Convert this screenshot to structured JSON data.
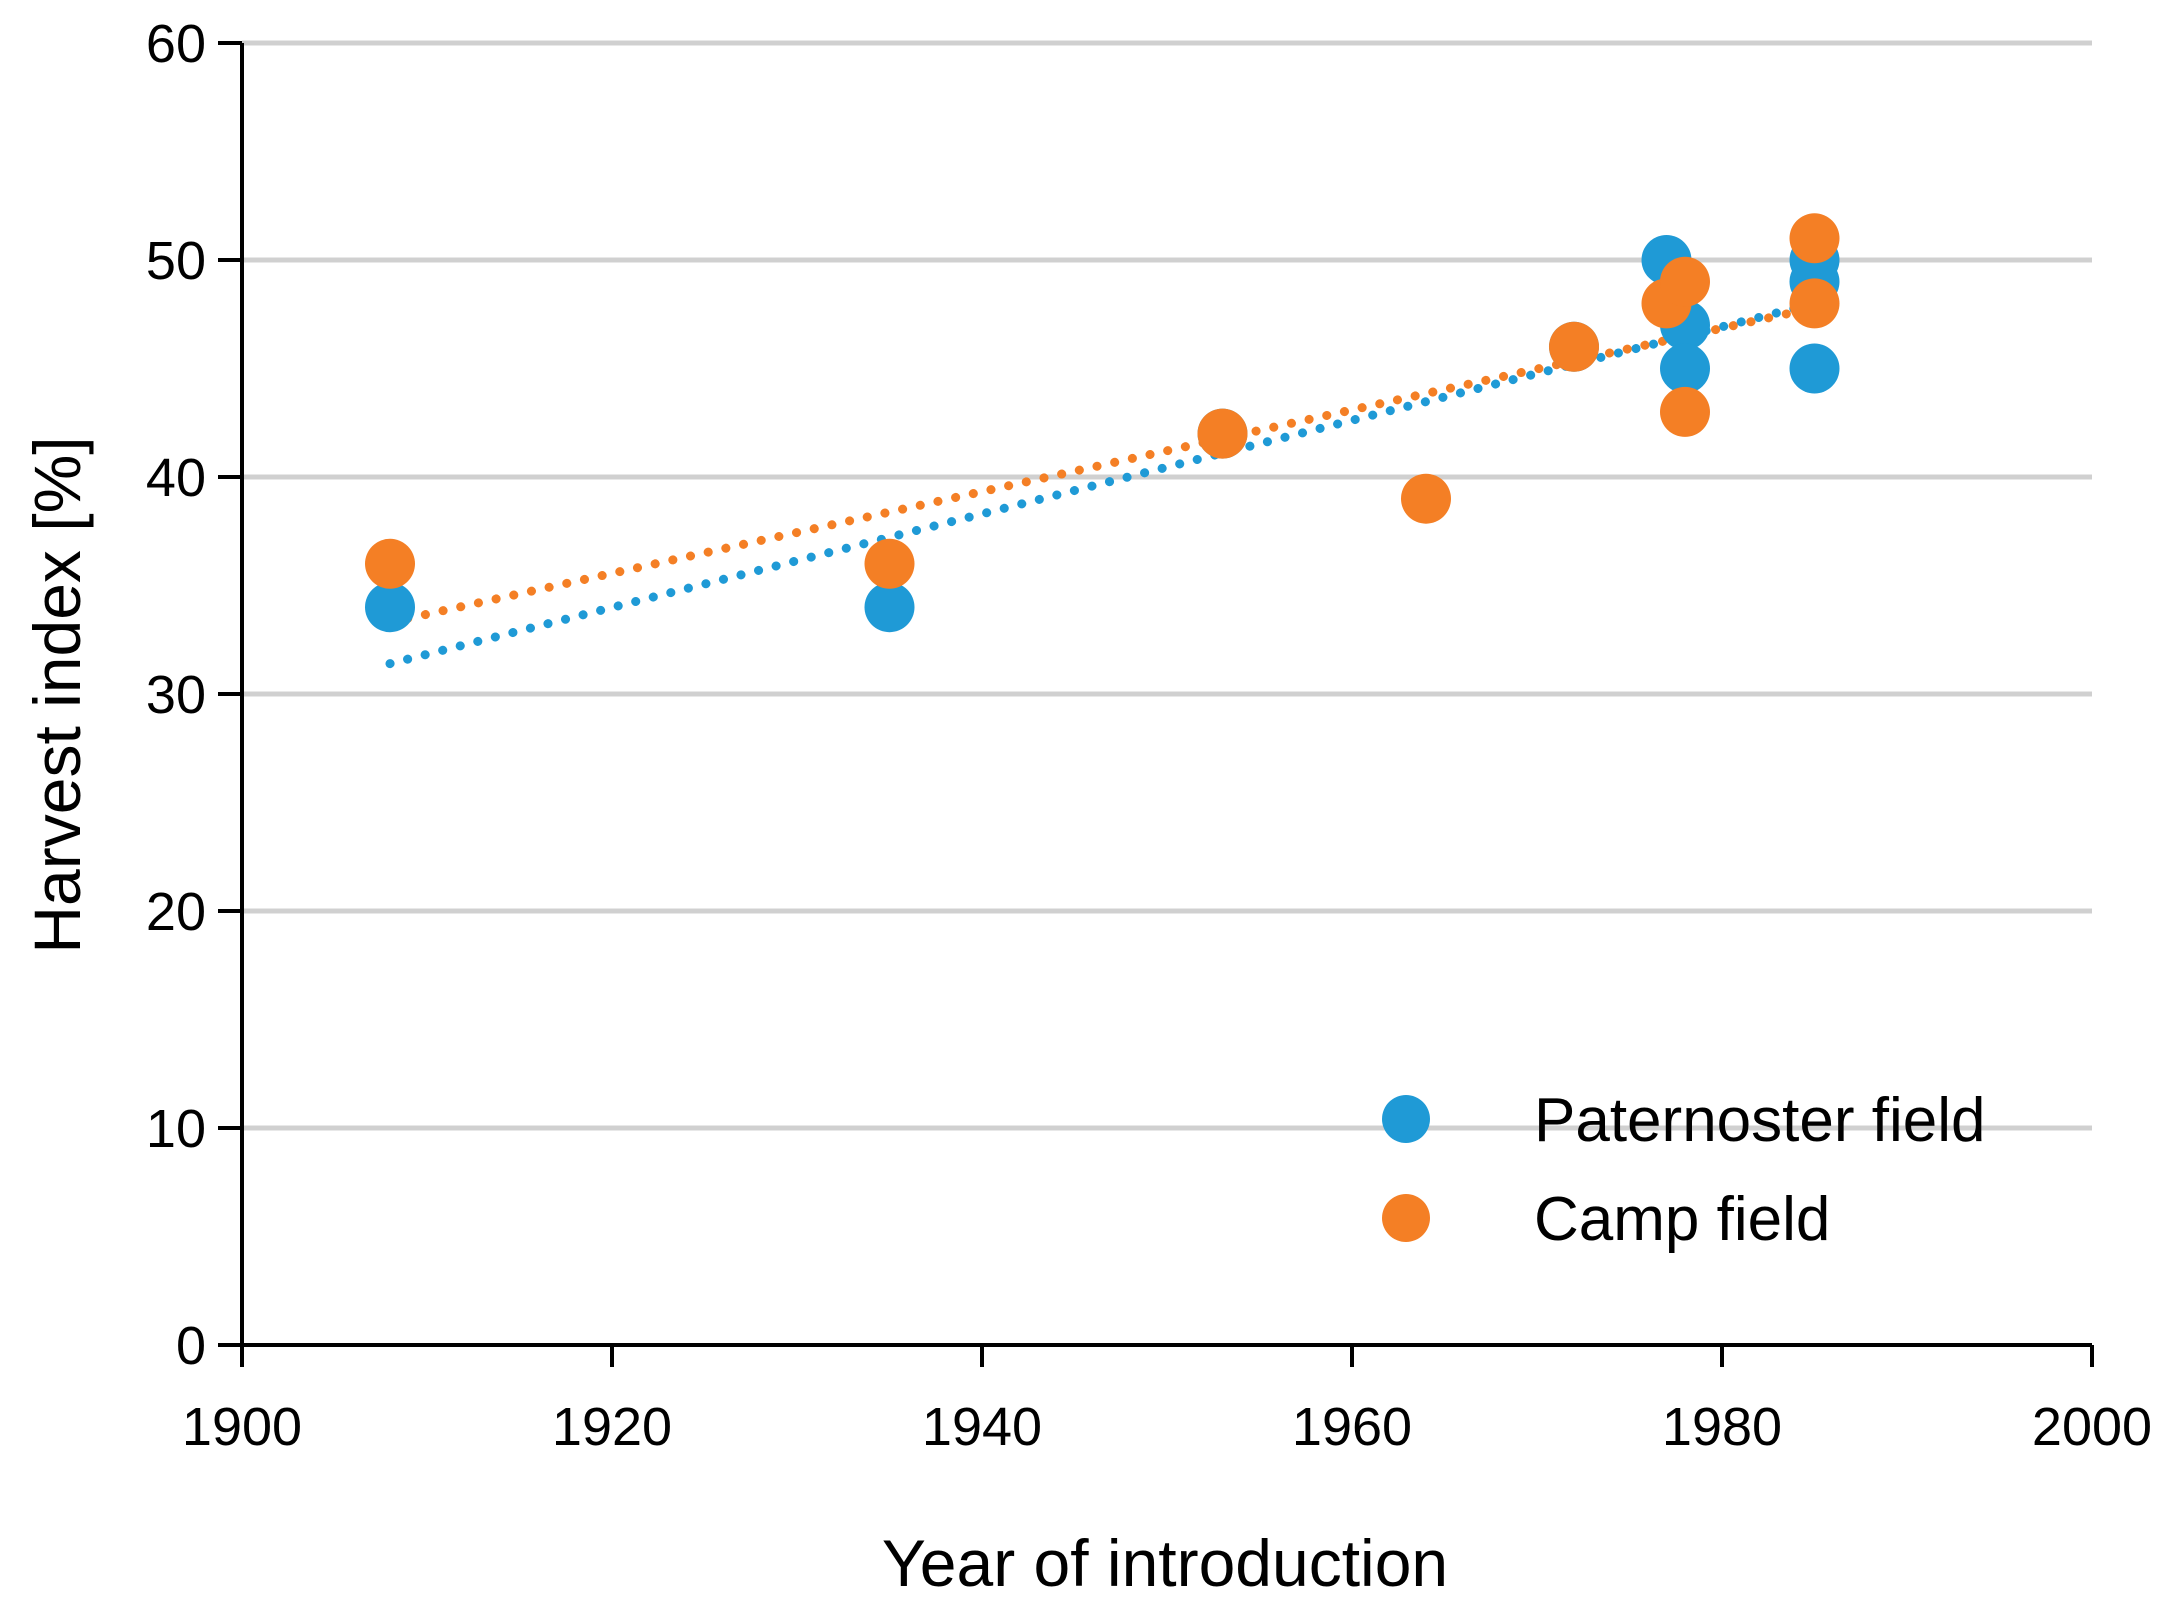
{
  "chart_data": {
    "type": "scatter",
    "title": "",
    "xlabel": "Year of introduction",
    "ylabel": "Harvest index [%]",
    "xlim": [
      1900,
      2000
    ],
    "ylim": [
      0,
      60
    ],
    "x_ticks": [
      1900,
      1920,
      1940,
      1960,
      1980,
      2000
    ],
    "y_ticks": [
      0,
      10,
      20,
      30,
      40,
      50,
      60
    ],
    "grid": "horizontal",
    "legend_position": "bottom-right",
    "series": [
      {
        "name": "Paternoster field",
        "color": "#1f9ad6",
        "points": [
          {
            "x": 1908,
            "y": 34
          },
          {
            "x": 1935,
            "y": 34
          },
          {
            "x": 1953,
            "y": 42
          },
          {
            "x": 1972,
            "y": 46
          },
          {
            "x": 1977,
            "y": 50
          },
          {
            "x": 1978,
            "y": 47
          },
          {
            "x": 1978,
            "y": 45
          },
          {
            "x": 1985,
            "y": 50
          },
          {
            "x": 1985,
            "y": 49
          },
          {
            "x": 1985,
            "y": 45
          }
        ],
        "trendline": {
          "type": "linear",
          "start": [
            1908,
            31.4
          ],
          "end": [
            1985,
            48.0
          ]
        }
      },
      {
        "name": "Camp field",
        "color": "#f47f25",
        "points": [
          {
            "x": 1908,
            "y": 36
          },
          {
            "x": 1935,
            "y": 36
          },
          {
            "x": 1953,
            "y": 42
          },
          {
            "x": 1964,
            "y": 39
          },
          {
            "x": 1972,
            "y": 46
          },
          {
            "x": 1977,
            "y": 48
          },
          {
            "x": 1978,
            "y": 49
          },
          {
            "x": 1978,
            "y": 43
          },
          {
            "x": 1985,
            "y": 51
          },
          {
            "x": 1985,
            "y": 48
          }
        ],
        "trendline": {
          "type": "linear",
          "start": [
            1908,
            33.3
          ],
          "end": [
            1985,
            47.8
          ]
        }
      }
    ]
  }
}
